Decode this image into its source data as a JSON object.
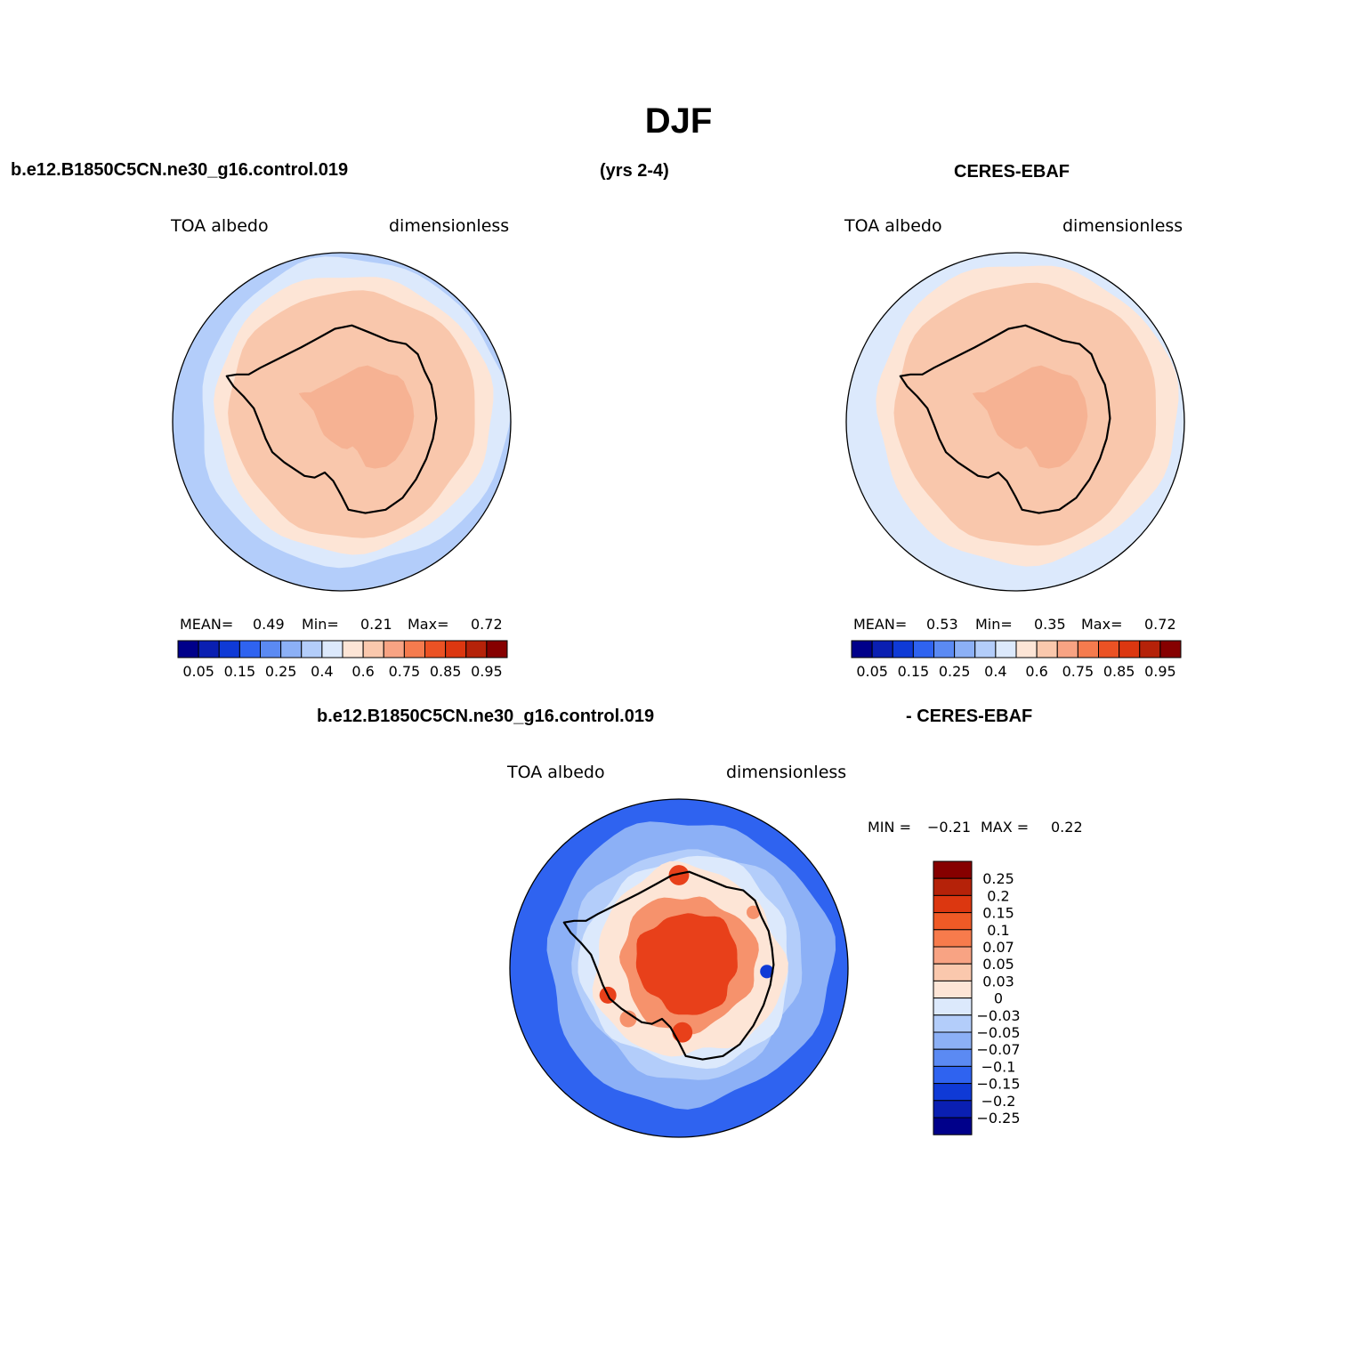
{
  "figure": {
    "title": "DJF",
    "left_header": "b.e12.B1850C5CN.ne30_g16.control.019",
    "years": "(yrs 2-4)",
    "right_header": "CERES-EBAF",
    "diff_header_left": "b.e12.B1850C5CN.ne30_g16.control.019",
    "diff_header_right": "- CERES-EBAF"
  },
  "chart_data": [
    {
      "type": "map",
      "name": "model",
      "variable": "TOA  albedo",
      "units": "dimensionless",
      "stats": {
        "mean_label": "MEAN=",
        "mean": "0.49",
        "min_label": "Min=",
        "min": "0.21",
        "max_label": "Max=",
        "max": "0.72"
      },
      "zones": [
        {
          "level": 0.28,
          "color": "#b3cdfa"
        },
        {
          "level": 0.45,
          "color": "#dce9fc"
        },
        {
          "level": 0.55,
          "color": "#fde5d6"
        },
        {
          "level": 0.65,
          "color": "#f9c7ac"
        },
        {
          "level": 0.7,
          "color": "#f6b293"
        }
      ]
    },
    {
      "type": "map",
      "name": "obs",
      "variable": "TOA  albedo",
      "units": "dimensionless",
      "stats": {
        "mean_label": "MEAN=",
        "mean": "0.53",
        "min_label": "Min=",
        "min": "0.35",
        "max_label": "Max=",
        "max": "0.72"
      },
      "zones": [
        {
          "level": 0.4,
          "color": "#dce9fc"
        },
        {
          "level": 0.55,
          "color": "#fde5d6"
        },
        {
          "level": 0.65,
          "color": "#f9c7ac"
        },
        {
          "level": 0.7,
          "color": "#f6b293"
        }
      ]
    },
    {
      "type": "map",
      "name": "difference",
      "variable": "TOA  albedo",
      "units": "dimensionless",
      "stats": {
        "min_label": "MIN =",
        "min": "−0.21",
        "max_label": "MAX =",
        "max": "0.22"
      },
      "zones": [
        {
          "level": -0.15,
          "color": "#2f63f0"
        },
        {
          "level": -0.05,
          "color": "#8cb0f6"
        },
        {
          "level": -0.03,
          "color": "#b3cdfa"
        },
        {
          "level": 0.0,
          "color": "#dce9fc"
        },
        {
          "level": 0.03,
          "color": "#fde5d6"
        },
        {
          "level": 0.1,
          "color": "#f6926c"
        },
        {
          "level": 0.15,
          "color": "#e8401a"
        }
      ]
    }
  ],
  "colorbar_main": {
    "colors": [
      "#00008a",
      "#0a1fb2",
      "#0f3ad6",
      "#2f63f0",
      "#5b8af3",
      "#8cb0f6",
      "#b3cdfa",
      "#dce9fc",
      "#fde5d6",
      "#fac8ad",
      "#f8a383",
      "#f57b4e",
      "#eb5224",
      "#dc3710",
      "#b52209",
      "#860000"
    ],
    "labels": [
      "0.05",
      "0.15",
      "0.25",
      "0.4",
      "0.6",
      "0.75",
      "0.85",
      "0.95"
    ]
  },
  "colorbar_diff": {
    "colors": [
      "#860000",
      "#b52209",
      "#dc3710",
      "#ef5a26",
      "#f77b4c",
      "#f8a383",
      "#fac8ad",
      "#fde5d6",
      "#dce9fc",
      "#b3cdfa",
      "#8cb0f6",
      "#5b8af3",
      "#2f63f0",
      "#0f3ad6",
      "#0a1fb2",
      "#00008a"
    ],
    "labels": [
      "0.25",
      "0.2",
      "0.15",
      "0.1",
      "0.07",
      "0.05",
      "0.03",
      "0",
      "−0.03",
      "−0.05",
      "−0.07",
      "−0.1",
      "−0.15",
      "−0.2",
      "−0.25"
    ]
  },
  "colors": {
    "coast": "#000000",
    "outline": "#000000"
  }
}
